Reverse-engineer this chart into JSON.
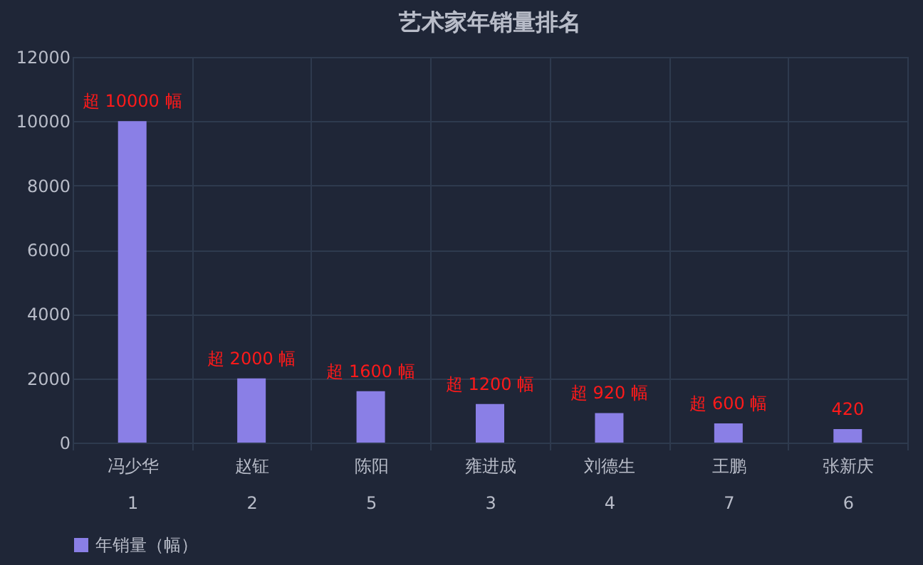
{
  "chart_data": {
    "type": "bar",
    "title": "艺术家年销量排名",
    "categories": [
      "冯少华\n1",
      "赵钲\n2",
      "陈阳\n5",
      "雍进成\n3",
      "刘德生\n4",
      "王鹏\n7",
      "张新庆\n6"
    ],
    "series": [
      {
        "name": "年销量（幅）",
        "color": "#8a7fe6",
        "values": [
          10000,
          2000,
          1600,
          1200,
          920,
          600,
          420
        ],
        "value_labels": [
          "超 10000 幅",
          "超 2000 幅",
          "超 1600 幅",
          "超 1200 幅",
          "超 920 幅",
          "超 600 幅",
          "420"
        ]
      }
    ],
    "ylim": [
      0,
      12000
    ],
    "yticks": [
      0,
      2000,
      4000,
      6000,
      8000,
      10000,
      12000
    ],
    "grid": true,
    "legend": "bottom"
  }
}
